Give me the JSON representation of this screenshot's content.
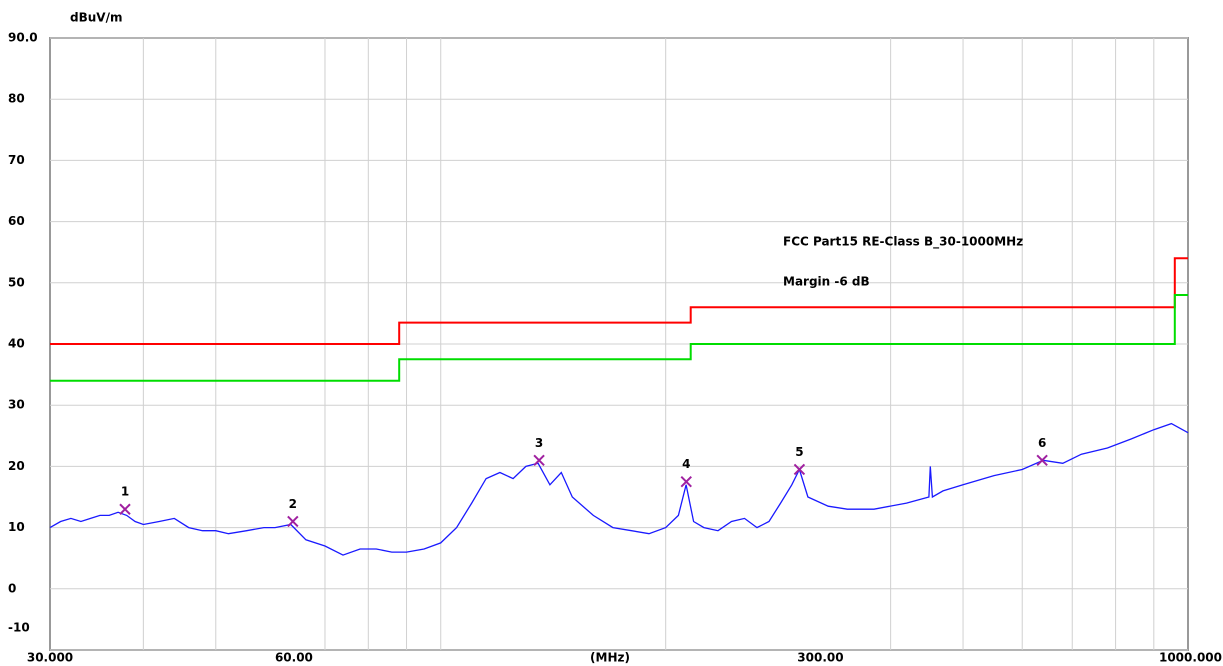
{
  "chart_data": {
    "type": "line",
    "y_label": "dBuV/m",
    "x_label": "(MHz)",
    "xscale": "log",
    "xlim": [
      30,
      1000
    ],
    "ylim": [
      -10,
      90
    ],
    "xticks": [
      {
        "value": 30,
        "label": "30.000"
      },
      {
        "value": 60,
        "label": "60.00"
      },
      {
        "value": 300,
        "label": "300.00"
      },
      {
        "value": 1000,
        "label": "1000.000"
      }
    ],
    "xminor": [
      40,
      50,
      70,
      80,
      90,
      100,
      200,
      400,
      500,
      600,
      700,
      800,
      900
    ],
    "yticks": [
      {
        "value": 90,
        "label": "90.0"
      },
      80,
      70,
      60,
      50,
      40,
      30,
      20,
      10,
      0,
      -10
    ],
    "grid": true,
    "series": [
      {
        "color": "#1a1aff",
        "x": [
          30,
          31,
          32,
          33,
          34,
          35,
          36,
          37,
          38,
          39,
          40,
          42,
          44,
          46,
          48,
          50,
          52,
          55,
          58,
          60,
          63,
          66,
          70,
          74,
          78,
          82,
          86,
          90,
          95,
          100,
          105,
          110,
          115,
          120,
          125,
          130,
          135,
          140,
          145,
          150,
          160,
          170,
          180,
          190,
          200,
          208,
          213,
          218,
          225,
          235,
          245,
          255,
          265,
          275,
          285,
          295,
          302,
          310,
          330,
          350,
          380,
          420,
          450,
          452,
          455,
          470,
          500,
          550,
          600,
          640,
          680,
          720,
          780,
          840,
          900,
          950,
          1000
        ],
        "values": [
          10,
          11,
          11.5,
          11,
          11.5,
          12,
          12,
          12.5,
          12,
          11,
          10.5,
          11,
          11.5,
          10,
          9.5,
          9.5,
          9,
          9.5,
          10,
          10,
          10.5,
          8,
          7,
          5.5,
          6.5,
          6.5,
          6,
          6,
          6.5,
          7.5,
          10,
          14,
          18,
          19,
          18,
          20,
          20.5,
          17,
          19,
          15,
          12,
          10,
          9.5,
          9,
          10,
          12,
          17,
          11,
          10,
          9.5,
          11,
          11.5,
          10,
          11,
          14,
          17,
          19.5,
          15,
          13.5,
          13,
          13,
          14,
          15,
          20,
          15,
          16,
          17,
          18.5,
          19.5,
          21,
          20.5,
          22,
          23,
          24.5,
          26,
          27,
          25.5
        ]
      },
      {
        "name": "FCC Part15 RE-Class B_30-1000MHz",
        "color": "#ff0000",
        "x": [
          30,
          88,
          88,
          216,
          216,
          960,
          960,
          1000
        ],
        "values": [
          40,
          40,
          43.5,
          43.5,
          46,
          46,
          54,
          54
        ]
      },
      {
        "name": "Margin -6 dB",
        "color": "#00dd00",
        "x": [
          30,
          88,
          88,
          216,
          216,
          960,
          960,
          1000
        ],
        "values": [
          34,
          34,
          37.5,
          37.5,
          40,
          40,
          48,
          48
        ]
      }
    ],
    "markers": {
      "color": "#a020a0",
      "labels": [
        "1",
        "2",
        "3",
        "4",
        "5",
        "6"
      ],
      "x": [
        37.8,
        63.4,
        135.4,
        213.1,
        302,
        638
      ],
      "values": [
        13,
        11,
        21,
        17.5,
        19.5,
        21
      ]
    }
  }
}
